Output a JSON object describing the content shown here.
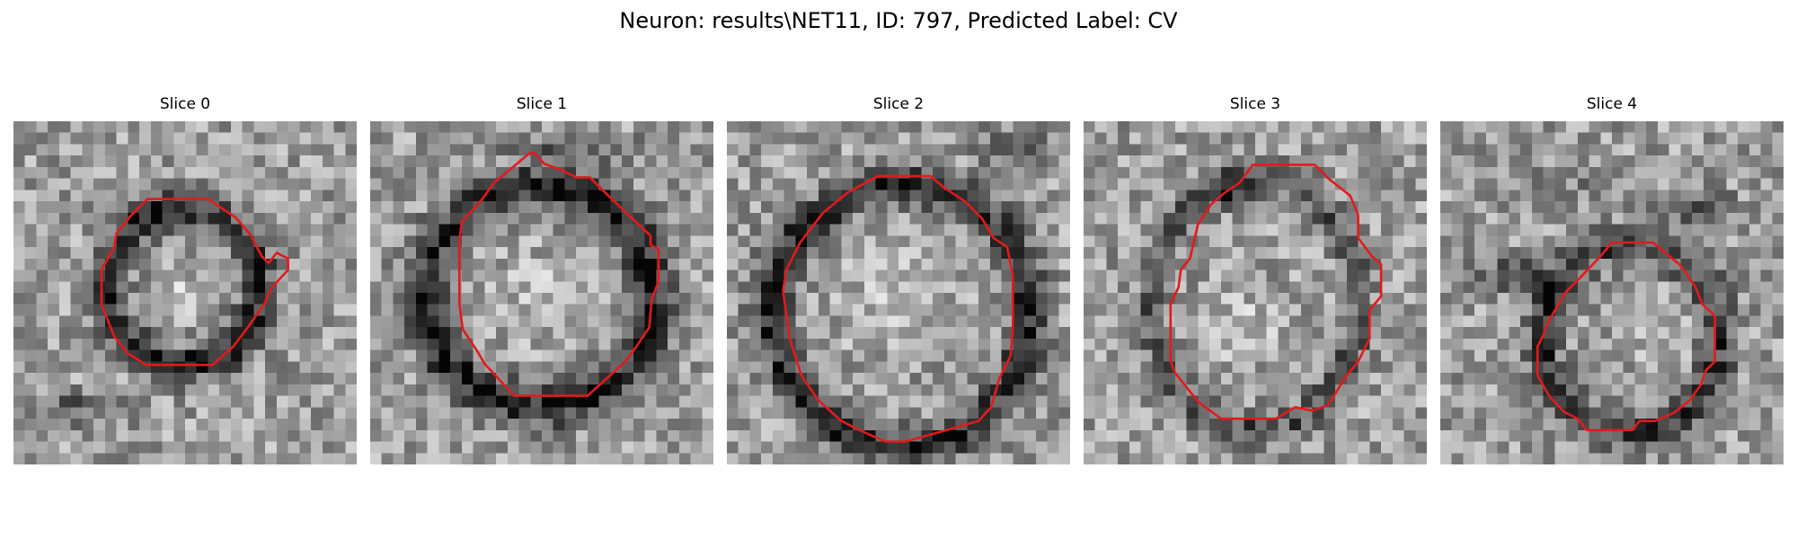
{
  "figure": {
    "suptitle": "Neuron: results\\NET11, ID: 797, Predicted Label: CV",
    "contour_color": "#e31a1c",
    "colormap": "grayscale"
  },
  "slices": [
    {
      "title": "Slice 0",
      "seed": 11,
      "contour_shape": "small-ring-with-notch",
      "ring_darkness": 0.55
    },
    {
      "title": "Slice 1",
      "seed": 23,
      "contour_shape": "large-octagon",
      "ring_darkness": 0.6
    },
    {
      "title": "Slice 2",
      "seed": 37,
      "contour_shape": "large-octagon-low",
      "ring_darkness": 0.55
    },
    {
      "title": "Slice 3",
      "seed": 41,
      "contour_shape": "irregular-octagon",
      "ring_darkness": 0.35
    },
    {
      "title": "Slice 4",
      "seed": 59,
      "contour_shape": "small-octagon-low-right",
      "ring_darkness": 0.45
    }
  ]
}
